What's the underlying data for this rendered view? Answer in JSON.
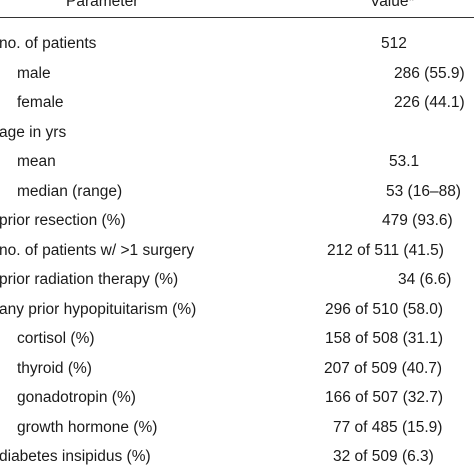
{
  "header": {
    "parameter": "Parameter",
    "value": "Value*"
  },
  "rows": [
    {
      "label": "no. of patients",
      "value": "512"
    },
    {
      "label": "male",
      "value": "286 (55.9)"
    },
    {
      "label": "female",
      "value": "226 (44.1)"
    },
    {
      "label": "age in yrs",
      "value": ""
    },
    {
      "label": "mean",
      "value": "53.1"
    },
    {
      "label": "median (range)",
      "value": "53 (16–88)"
    },
    {
      "label": "prior resection (%)",
      "value": "479 (93.6)"
    },
    {
      "label": "no. of patients w/ >1 surgery",
      "value": "212 of 511 (41.5)"
    },
    {
      "label": "prior radiation therapy (%)",
      "value": "34 (6.6)"
    },
    {
      "label": "any prior hypopituitarism (%)",
      "value": "296 of 510 (58.0)"
    },
    {
      "label": "cortisol (%)",
      "value": "158 of 508 (31.1)"
    },
    {
      "label": "thyroid (%)",
      "value": "207 of 509 (40.7)"
    },
    {
      "label": "gonadotropin (%)",
      "value": "166 of 507 (32.7)"
    },
    {
      "label": "growth hormone (%)",
      "value": "77 of 485 (15.9)"
    },
    {
      "label": "diabetes insipidus (%)",
      "value": "32 of 509 (6.3)"
    }
  ]
}
